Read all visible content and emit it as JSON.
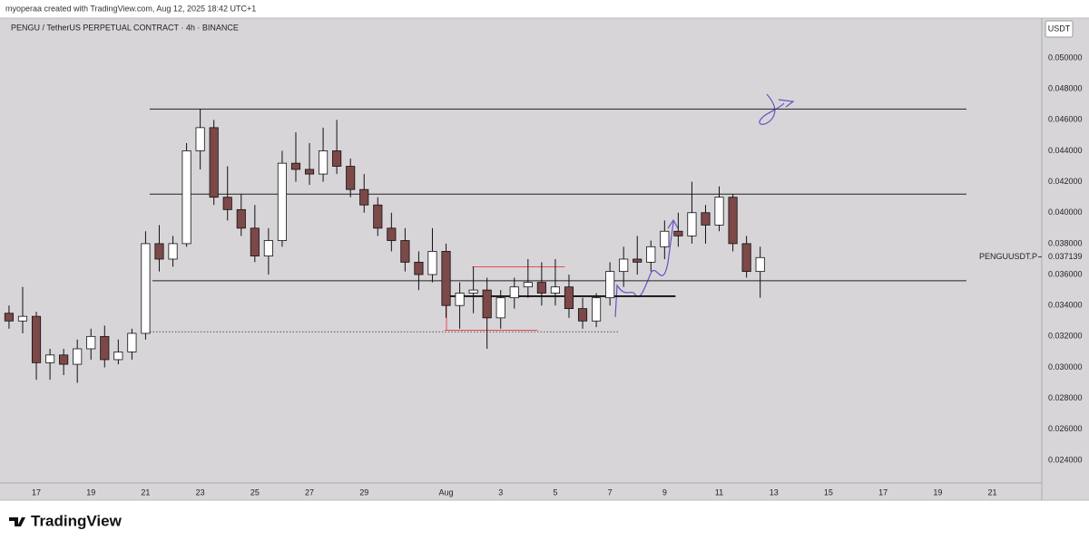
{
  "chart_data": {
    "type": "candlestick",
    "header": "myoperaa created with TradingView.com, Aug 12, 2025 18:42 UTC+1",
    "title": "PENGU / TetherUS PERPETUAL CONTRACT · 4h · BINANCE",
    "currency": "USDT",
    "brand": "TradingView",
    "symbol_label": "PENGUUSDT.P",
    "last_price": 0.037139,
    "up_color": "#ffffff",
    "down_color": "#7d4848",
    "wick_color": "#111111",
    "grid": false,
    "x": [
      16.0,
      16.5,
      17.0,
      17.5,
      18.0,
      18.5,
      19.0,
      19.5,
      20.0,
      20.5,
      21.0,
      21.5,
      22.0,
      22.5,
      23.0,
      23.5,
      24.0,
      24.5,
      25.0,
      25.5,
      26.0,
      26.5,
      27.0,
      27.5,
      28.0,
      28.5,
      29.0,
      29.5,
      30.0,
      30.5,
      31.0,
      31.5,
      32.0,
      32.5,
      33.0,
      33.5,
      34.0,
      34.5,
      35.0,
      35.5,
      36.0,
      36.5,
      37.0,
      37.5,
      38.0,
      38.5,
      39.0,
      39.5,
      40.0,
      40.5,
      41.0,
      41.5,
      42.0,
      42.5,
      43.0,
      43.5
    ],
    "open": [
      0.0335,
      0.033,
      0.0333,
      0.0303,
      0.0308,
      0.0302,
      0.0312,
      0.032,
      0.0305,
      0.031,
      0.0322,
      0.038,
      0.037,
      0.038,
      0.044,
      0.0455,
      0.041,
      0.0402,
      0.039,
      0.0372,
      0.0382,
      0.0432,
      0.0428,
      0.0425,
      0.044,
      0.043,
      0.0415,
      0.0405,
      0.039,
      0.0382,
      0.0368,
      0.036,
      0.0375,
      0.034,
      0.0348,
      0.035,
      0.0332,
      0.0345,
      0.0352,
      0.0355,
      0.0348,
      0.0352,
      0.0338,
      0.033,
      0.0345,
      0.0362,
      0.037,
      0.0368,
      0.0378,
      0.0388,
      0.0385,
      0.04,
      0.0392,
      0.041,
      0.038,
      0.0362
    ],
    "high": [
      0.034,
      0.0352,
      0.0336,
      0.0312,
      0.0312,
      0.0318,
      0.0325,
      0.0327,
      0.0318,
      0.0325,
      0.0388,
      0.0392,
      0.0385,
      0.0445,
      0.0467,
      0.046,
      0.043,
      0.0412,
      0.0405,
      0.039,
      0.044,
      0.0452,
      0.0445,
      0.0455,
      0.046,
      0.0435,
      0.0425,
      0.041,
      0.04,
      0.039,
      0.0375,
      0.039,
      0.038,
      0.0355,
      0.0365,
      0.0358,
      0.035,
      0.0358,
      0.037,
      0.0368,
      0.037,
      0.036,
      0.0345,
      0.0348,
      0.0368,
      0.0378,
      0.0385,
      0.0382,
      0.0395,
      0.04,
      0.042,
      0.0405,
      0.0417,
      0.0412,
      0.0385,
      0.0378
    ],
    "low": [
      0.0325,
      0.0322,
      0.0292,
      0.0292,
      0.0295,
      0.029,
      0.0305,
      0.03,
      0.0302,
      0.0305,
      0.0318,
      0.0362,
      0.0365,
      0.0378,
      0.0428,
      0.0405,
      0.0395,
      0.0385,
      0.0368,
      0.036,
      0.0378,
      0.042,
      0.0418,
      0.042,
      0.0425,
      0.041,
      0.04,
      0.0385,
      0.0375,
      0.0362,
      0.035,
      0.0355,
      0.0332,
      0.0325,
      0.0335,
      0.0312,
      0.0325,
      0.0338,
      0.0345,
      0.034,
      0.034,
      0.0332,
      0.0325,
      0.0326,
      0.034,
      0.0352,
      0.036,
      0.0362,
      0.037,
      0.0378,
      0.038,
      0.038,
      0.0388,
      0.0375,
      0.0358,
      0.0345
    ],
    "close": [
      0.033,
      0.0333,
      0.0303,
      0.0308,
      0.0302,
      0.0312,
      0.032,
      0.0305,
      0.031,
      0.0322,
      0.038,
      0.037,
      0.038,
      0.044,
      0.0455,
      0.041,
      0.0402,
      0.039,
      0.0372,
      0.0382,
      0.0432,
      0.0428,
      0.0425,
      0.044,
      0.043,
      0.0415,
      0.0405,
      0.039,
      0.0382,
      0.0368,
      0.036,
      0.0375,
      0.034,
      0.0348,
      0.035,
      0.0332,
      0.0345,
      0.0352,
      0.0355,
      0.0348,
      0.0352,
      0.0338,
      0.033,
      0.0345,
      0.0362,
      0.037,
      0.0368,
      0.0378,
      0.0388,
      0.0385,
      0.04,
      0.0392,
      0.041,
      0.038,
      0.0362,
      0.0371
    ],
    "levels": [
      {
        "price": 0.0467,
        "x": [
          21.15,
          51.05
        ],
        "color": "#222222",
        "style": "solid"
      },
      {
        "price": 0.0412,
        "x": [
          21.15,
          51.05
        ],
        "color": "#222222",
        "style": "solid"
      },
      {
        "price": 0.0356,
        "x": [
          21.25,
          51.05
        ],
        "color": "#222222",
        "style": "solid"
      },
      {
        "price": 0.0323,
        "x": [
          21.15,
          38.35
        ],
        "color": "#555555",
        "style": "dotted"
      },
      {
        "price": 0.0346,
        "x": [
          31.85,
          40.4
        ],
        "color": "#111111",
        "style": "thick"
      },
      {
        "price": 0.0365,
        "x": [
          32.95,
          36.35
        ],
        "color": "#e05050",
        "style": "solid"
      },
      {
        "price": 0.0324,
        "x": [
          31.95,
          35.35
        ],
        "color": "#e05050",
        "style": "solid"
      }
    ],
    "xlim": [
      15.67,
      53.81
    ],
    "xticks": [
      17,
      19,
      21,
      23,
      25,
      27,
      29,
      {
        "value": 32,
        "label": "Aug"
      },
      {
        "value": 34,
        "label": "3"
      },
      {
        "value": 36,
        "label": "5"
      },
      {
        "value": 38,
        "label": "7"
      },
      {
        "value": 40,
        "label": "9"
      },
      {
        "value": 42,
        "label": "11"
      },
      {
        "value": 44,
        "label": "13"
      },
      {
        "value": 46,
        "label": "15"
      },
      {
        "value": 48,
        "label": "17"
      },
      {
        "value": 50,
        "label": "19"
      },
      {
        "value": 52,
        "label": "21"
      }
    ],
    "ylim": [
      0.02253,
      0.05258
    ],
    "yticks": [
      {
        "value": 0.024,
        "label": "0.024000"
      },
      {
        "value": 0.026,
        "label": "0.026000"
      },
      {
        "value": 0.028,
        "label": "0.028000"
      },
      {
        "value": 0.03,
        "label": "0.030000"
      },
      {
        "value": 0.032,
        "label": "0.032000"
      },
      {
        "value": 0.034,
        "label": "0.034000"
      },
      {
        "value": 0.036,
        "label": "0.036000"
      },
      {
        "value": 0.038,
        "label": "0.038000"
      },
      {
        "value": 0.04,
        "label": "0.040000"
      },
      {
        "value": 0.042,
        "label": "0.042000"
      },
      {
        "value": 0.044,
        "label": "0.044000"
      },
      {
        "value": 0.046,
        "label": "0.046000"
      },
      {
        "value": 0.048,
        "label": "0.048000"
      },
      {
        "value": 0.05,
        "label": "0.050000"
      }
    ]
  }
}
